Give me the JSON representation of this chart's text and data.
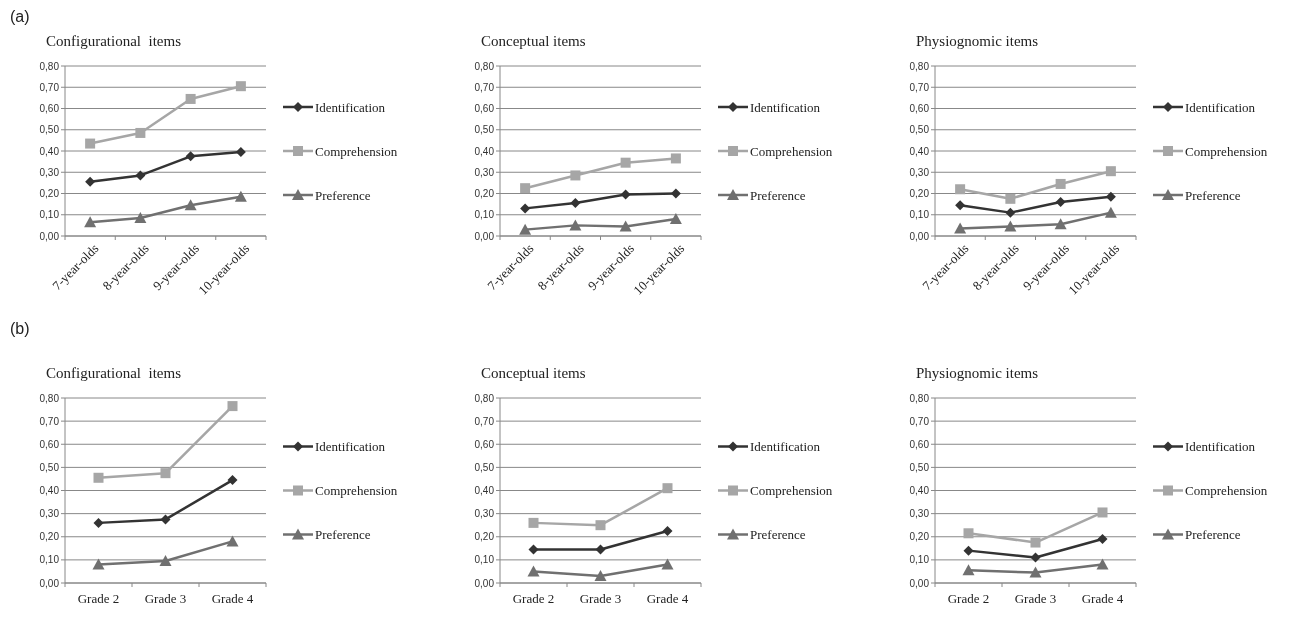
{
  "chart_data": [
    {
      "type": "line",
      "title": "Configurational  items",
      "annotations": [
        "(a)"
      ],
      "categories": [
        "7-year-olds",
        "8-year-olds",
        "9-year-olds",
        "10-year-olds"
      ],
      "ylim": [
        0,
        0.8
      ],
      "yticks": [
        {
          "value": 0,
          "label": "0,00"
        },
        {
          "value": 0.1,
          "label": "0,10"
        },
        {
          "value": 0.2,
          "label": "0,20"
        },
        {
          "value": 0.3,
          "label": "0,30"
        },
        {
          "value": 0.4,
          "label": "0,40"
        },
        {
          "value": 0.5,
          "label": "0,50"
        },
        {
          "value": 0.6,
          "label": "0,60"
        },
        {
          "value": 0.7,
          "label": "0,70"
        },
        {
          "value": 0.8,
          "label": "0,80"
        }
      ],
      "grid": "y",
      "legend": "right",
      "series": [
        {
          "name": "Identification",
          "color": "#333333",
          "marker": "diamond",
          "values": [
            0.255,
            0.285,
            0.375,
            0.395
          ]
        },
        {
          "name": "Comprehension",
          "color": "#a6a6a6",
          "marker": "square",
          "values": [
            0.435,
            0.485,
            0.645,
            0.705
          ]
        },
        {
          "name": "Preference",
          "color": "#707070",
          "marker": "triangle",
          "values": [
            0.065,
            0.085,
            0.145,
            0.185
          ]
        }
      ]
    },
    {
      "type": "line",
      "title": "Conceptual items",
      "categories": [
        "7-year-olds",
        "8-year-olds",
        "9-year-olds",
        "10-year-olds"
      ],
      "ylim": [
        0,
        0.8
      ],
      "yticks": [
        {
          "value": 0,
          "label": "0,00"
        },
        {
          "value": 0.1,
          "label": "0,10"
        },
        {
          "value": 0.2,
          "label": "0,20"
        },
        {
          "value": 0.3,
          "label": "0,30"
        },
        {
          "value": 0.4,
          "label": "0,40"
        },
        {
          "value": 0.5,
          "label": "0,50"
        },
        {
          "value": 0.6,
          "label": "0,60"
        },
        {
          "value": 0.7,
          "label": "0,70"
        },
        {
          "value": 0.8,
          "label": "0,80"
        }
      ],
      "grid": "y",
      "legend": "right",
      "series": [
        {
          "name": "Identification",
          "color": "#333333",
          "marker": "diamond",
          "values": [
            0.13,
            0.155,
            0.195,
            0.2
          ]
        },
        {
          "name": "Comprehension",
          "color": "#a6a6a6",
          "marker": "square",
          "values": [
            0.225,
            0.285,
            0.345,
            0.365
          ]
        },
        {
          "name": "Preference",
          "color": "#707070",
          "marker": "triangle",
          "values": [
            0.03,
            0.05,
            0.045,
            0.08
          ]
        }
      ]
    },
    {
      "type": "line",
      "title": "Physiognomic items",
      "categories": [
        "7-year-olds",
        "8-year-olds",
        "9-year-olds",
        "10-year-olds"
      ],
      "ylim": [
        0,
        0.8
      ],
      "yticks": [
        {
          "value": 0,
          "label": "0,00"
        },
        {
          "value": 0.1,
          "label": "0,10"
        },
        {
          "value": 0.2,
          "label": "0,20"
        },
        {
          "value": 0.3,
          "label": "0,30"
        },
        {
          "value": 0.4,
          "label": "0,40"
        },
        {
          "value": 0.5,
          "label": "0,50"
        },
        {
          "value": 0.6,
          "label": "0,60"
        },
        {
          "value": 0.7,
          "label": "0,70"
        },
        {
          "value": 0.8,
          "label": "0,80"
        }
      ],
      "grid": "y",
      "legend": "right",
      "series": [
        {
          "name": "Identification",
          "color": "#333333",
          "marker": "diamond",
          "values": [
            0.145,
            0.11,
            0.16,
            0.185
          ]
        },
        {
          "name": "Comprehension",
          "color": "#a6a6a6",
          "marker": "square",
          "values": [
            0.22,
            0.175,
            0.245,
            0.305
          ]
        },
        {
          "name": "Preference",
          "color": "#707070",
          "marker": "triangle",
          "values": [
            0.035,
            0.045,
            0.055,
            0.11
          ]
        }
      ]
    },
    {
      "type": "line",
      "title": "Configurational  items",
      "annotations": [
        "(b)"
      ],
      "categories": [
        "Grade 2",
        "Grade 3",
        "Grade 4"
      ],
      "ylim": [
        0,
        0.8
      ],
      "yticks": [
        {
          "value": 0,
          "label": "0,00"
        },
        {
          "value": 0.1,
          "label": "0,10"
        },
        {
          "value": 0.2,
          "label": "0,20"
        },
        {
          "value": 0.3,
          "label": "0,30"
        },
        {
          "value": 0.4,
          "label": "0,40"
        },
        {
          "value": 0.5,
          "label": "0,50"
        },
        {
          "value": 0.6,
          "label": "0,60"
        },
        {
          "value": 0.7,
          "label": "0,70"
        },
        {
          "value": 0.8,
          "label": "0,80"
        }
      ],
      "grid": "y",
      "legend": "right",
      "series": [
        {
          "name": "Identification",
          "color": "#333333",
          "marker": "diamond",
          "values": [
            0.26,
            0.275,
            0.445
          ]
        },
        {
          "name": "Comprehension",
          "color": "#a6a6a6",
          "marker": "square",
          "values": [
            0.455,
            0.475,
            0.765
          ]
        },
        {
          "name": "Preference",
          "color": "#707070",
          "marker": "triangle",
          "values": [
            0.08,
            0.095,
            0.18
          ]
        }
      ]
    },
    {
      "type": "line",
      "title": "Conceptual items",
      "categories": [
        "Grade 2",
        "Grade 3",
        "Grade 4"
      ],
      "ylim": [
        0,
        0.8
      ],
      "yticks": [
        {
          "value": 0,
          "label": "0,00"
        },
        {
          "value": 0.1,
          "label": "0,10"
        },
        {
          "value": 0.2,
          "label": "0,20"
        },
        {
          "value": 0.3,
          "label": "0,30"
        },
        {
          "value": 0.4,
          "label": "0,40"
        },
        {
          "value": 0.5,
          "label": "0,50"
        },
        {
          "value": 0.6,
          "label": "0,60"
        },
        {
          "value": 0.7,
          "label": "0,70"
        },
        {
          "value": 0.8,
          "label": "0,80"
        }
      ],
      "grid": "y",
      "legend": "right",
      "series": [
        {
          "name": "Identification",
          "color": "#333333",
          "marker": "diamond",
          "values": [
            0.145,
            0.145,
            0.225
          ]
        },
        {
          "name": "Comprehension",
          "color": "#a6a6a6",
          "marker": "square",
          "values": [
            0.26,
            0.25,
            0.41
          ]
        },
        {
          "name": "Preference",
          "color": "#707070",
          "marker": "triangle",
          "values": [
            0.05,
            0.03,
            0.08
          ]
        }
      ]
    },
    {
      "type": "line",
      "title": "Physiognomic items",
      "categories": [
        "Grade 2",
        "Grade 3",
        "Grade 4"
      ],
      "ylim": [
        0,
        0.8
      ],
      "yticks": [
        {
          "value": 0,
          "label": "0,00"
        },
        {
          "value": 0.1,
          "label": "0,10"
        },
        {
          "value": 0.2,
          "label": "0,20"
        },
        {
          "value": 0.3,
          "label": "0,30"
        },
        {
          "value": 0.4,
          "label": "0,40"
        },
        {
          "value": 0.5,
          "label": "0,50"
        },
        {
          "value": 0.6,
          "label": "0,60"
        },
        {
          "value": 0.7,
          "label": "0,70"
        },
        {
          "value": 0.8,
          "label": "0,80"
        }
      ],
      "grid": "y",
      "legend": "right",
      "series": [
        {
          "name": "Identification",
          "color": "#333333",
          "marker": "diamond",
          "values": [
            0.14,
            0.11,
            0.19
          ]
        },
        {
          "name": "Comprehension",
          "color": "#a6a6a6",
          "marker": "square",
          "values": [
            0.215,
            0.175,
            0.305
          ]
        },
        {
          "name": "Preference",
          "color": "#707070",
          "marker": "triangle",
          "values": [
            0.055,
            0.045,
            0.08
          ]
        }
      ]
    }
  ]
}
